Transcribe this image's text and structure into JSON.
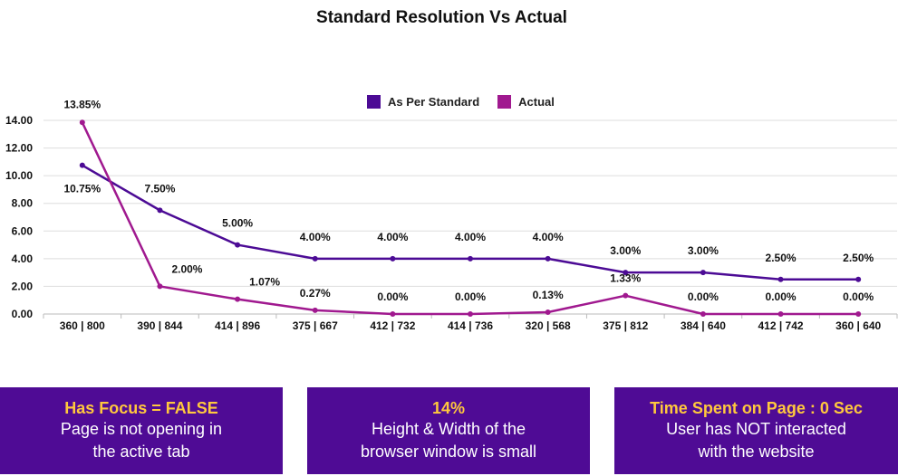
{
  "chart_data": {
    "type": "line",
    "title": "Standard Resolution Vs Actual",
    "categories": [
      "360 | 800",
      "390 | 844",
      "414 | 896",
      "375 | 667",
      "412 | 732",
      "414 | 736",
      "320 | 568",
      "375 | 812",
      "384 | 640",
      "412 | 742",
      "360 | 640"
    ],
    "series": [
      {
        "name": "As Per Standard",
        "color": "#4c0b95",
        "values": [
          10.75,
          7.5,
          5.0,
          4.0,
          4.0,
          4.0,
          4.0,
          3.0,
          3.0,
          2.5,
          2.5
        ],
        "labels": [
          "10.75%",
          "7.50%",
          "5.00%",
          "4.00%",
          "4.00%",
          "4.00%",
          "4.00%",
          "3.00%",
          "3.00%",
          "2.50%",
          "2.50%"
        ]
      },
      {
        "name": "Actual",
        "color": "#a0198f",
        "values": [
          13.85,
          2.0,
          1.07,
          0.27,
          0.0,
          0.0,
          0.13,
          1.33,
          0.0,
          0.0,
          0.0
        ],
        "labels": [
          "13.85%",
          "2.00%",
          "1.07%",
          "0.27%",
          "0.00%",
          "0.00%",
          "0.13%",
          "1.33%",
          "0.00%",
          "0.00%",
          "0.00%"
        ]
      }
    ],
    "yticks": [
      "0.00",
      "2.00",
      "4.00",
      "6.00",
      "8.00",
      "10.00",
      "12.00",
      "14.00"
    ],
    "ylim": [
      0,
      14
    ],
    "grid": true,
    "legend_position": "top-center"
  },
  "cards": [
    {
      "title": "Has Focus = FALSE",
      "line1": "Page is not opening in",
      "line2": "the active tab"
    },
    {
      "title": "14%",
      "line1": "Height & Width of the",
      "line2": "browser window is small"
    },
    {
      "title": "Time Spent on Page : 0 Sec",
      "line1": "User has NOT interacted",
      "line2": "with the website"
    }
  ],
  "colors": {
    "card_background": "#4f0b95",
    "card_title": "#ffc83d",
    "grid": "#dddddd"
  }
}
